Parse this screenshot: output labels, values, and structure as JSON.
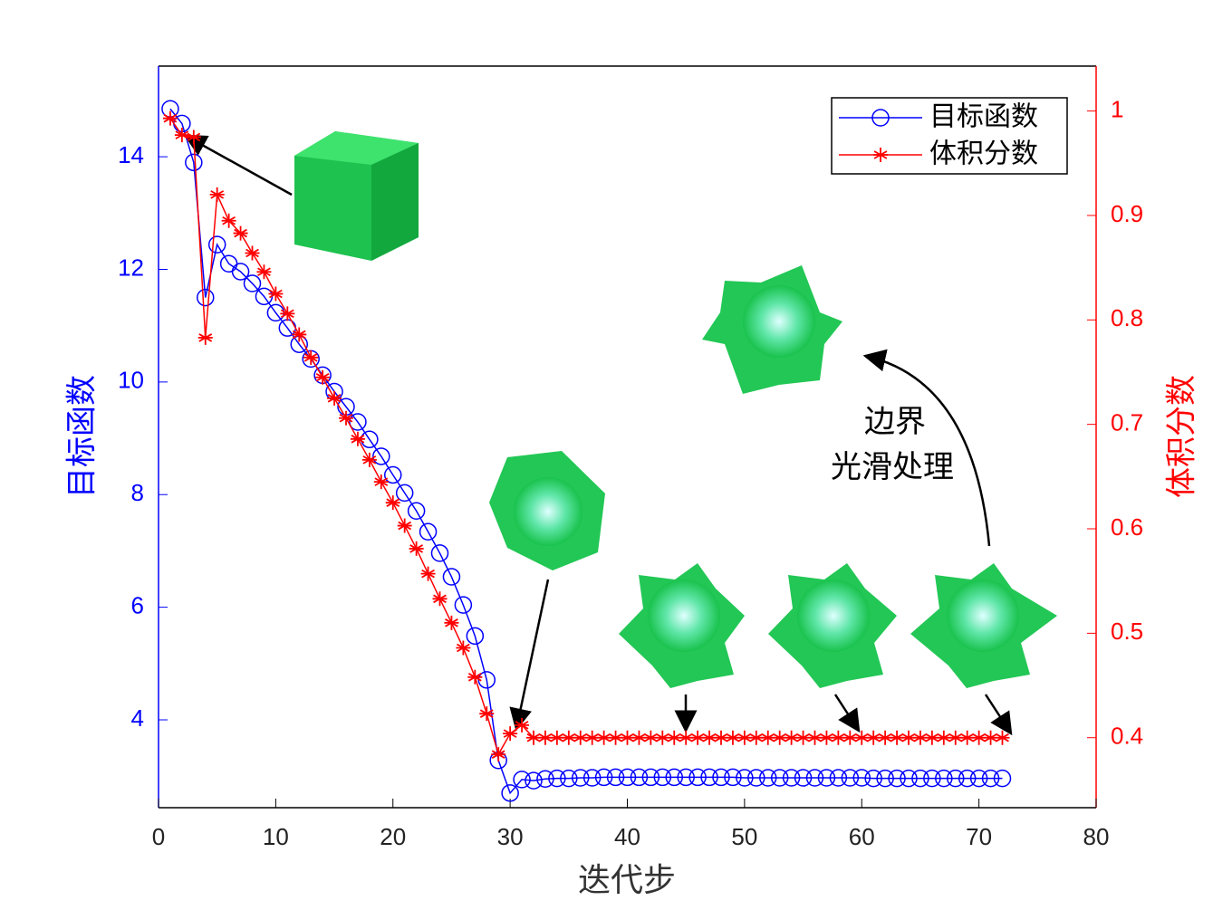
{
  "chart_data": {
    "type": "line",
    "xlabel": "迭代步",
    "ylabel": "目标函数",
    "y2label": "体积分数",
    "x": [
      1,
      2,
      3,
      4,
      5,
      6,
      7,
      8,
      9,
      10,
      11,
      12,
      13,
      14,
      15,
      16,
      17,
      18,
      19,
      20,
      21,
      22,
      23,
      24,
      25,
      26,
      27,
      28,
      29,
      30,
      31,
      32,
      33,
      34,
      35,
      36,
      37,
      38,
      39,
      40,
      41,
      42,
      43,
      44,
      45,
      46,
      47,
      48,
      49,
      50,
      51,
      52,
      53,
      54,
      55,
      56,
      57,
      58,
      59,
      60,
      61,
      62,
      63,
      64,
      65,
      66,
      67,
      68,
      69,
      70,
      71,
      72
    ],
    "series": [
      {
        "name": "目标函数",
        "color": "#0000ff",
        "marker": "circle",
        "axis": "y",
        "values": [
          14.85,
          14.59,
          13.9,
          11.5,
          12.44,
          12.1,
          11.96,
          11.75,
          11.52,
          11.23,
          10.96,
          10.67,
          10.41,
          10.12,
          9.83,
          9.56,
          9.29,
          8.98,
          8.68,
          8.35,
          8.03,
          7.71,
          7.34,
          6.96,
          6.54,
          6.04,
          5.49,
          4.71,
          3.28,
          2.7,
          2.94,
          2.92,
          2.95,
          2.96,
          2.96,
          2.97,
          2.97,
          2.98,
          2.98,
          2.98,
          2.98,
          2.98,
          2.98,
          2.98,
          2.98,
          2.98,
          2.98,
          2.98,
          2.98,
          2.97,
          2.97,
          2.97,
          2.97,
          2.97,
          2.97,
          2.97,
          2.97,
          2.97,
          2.97,
          2.97,
          2.96,
          2.96,
          2.96,
          2.96,
          2.96,
          2.96,
          2.96,
          2.96,
          2.96,
          2.96,
          2.96,
          2.96
        ]
      },
      {
        "name": "体积分数",
        "color": "#ff0000",
        "marker": "star",
        "axis": "y2",
        "values": [
          0.993,
          0.977,
          0.975,
          0.783,
          0.92,
          0.895,
          0.883,
          0.864,
          0.846,
          0.825,
          0.806,
          0.786,
          0.764,
          0.745,
          0.725,
          0.706,
          0.686,
          0.666,
          0.645,
          0.625,
          0.603,
          0.581,
          0.557,
          0.533,
          0.51,
          0.486,
          0.458,
          0.423,
          0.384,
          0.404,
          0.412,
          0.4,
          0.4,
          0.4,
          0.4,
          0.4,
          0.4,
          0.4,
          0.4,
          0.4,
          0.4,
          0.4,
          0.4,
          0.4,
          0.4,
          0.4,
          0.4,
          0.4,
          0.4,
          0.4,
          0.4,
          0.4,
          0.4,
          0.4,
          0.4,
          0.4,
          0.4,
          0.4,
          0.4,
          0.4,
          0.4,
          0.4,
          0.4,
          0.4,
          0.4,
          0.4,
          0.4,
          0.4,
          0.4,
          0.4,
          0.4,
          0.4
        ]
      }
    ],
    "xlim": [
      0,
      80
    ],
    "xticks": [
      0,
      10,
      20,
      30,
      40,
      50,
      60,
      70,
      80
    ],
    "ylim": [
      2.44,
      15.61
    ],
    "yticks": [
      4,
      6,
      8,
      10,
      12,
      14
    ],
    "y2lim": [
      0.333,
      1.043
    ],
    "y2ticks": [
      0.4,
      0.5,
      0.6,
      0.7,
      0.8,
      0.9,
      1
    ],
    "legend": "upper right",
    "annotations": [
      "边界",
      "光滑处理"
    ]
  }
}
